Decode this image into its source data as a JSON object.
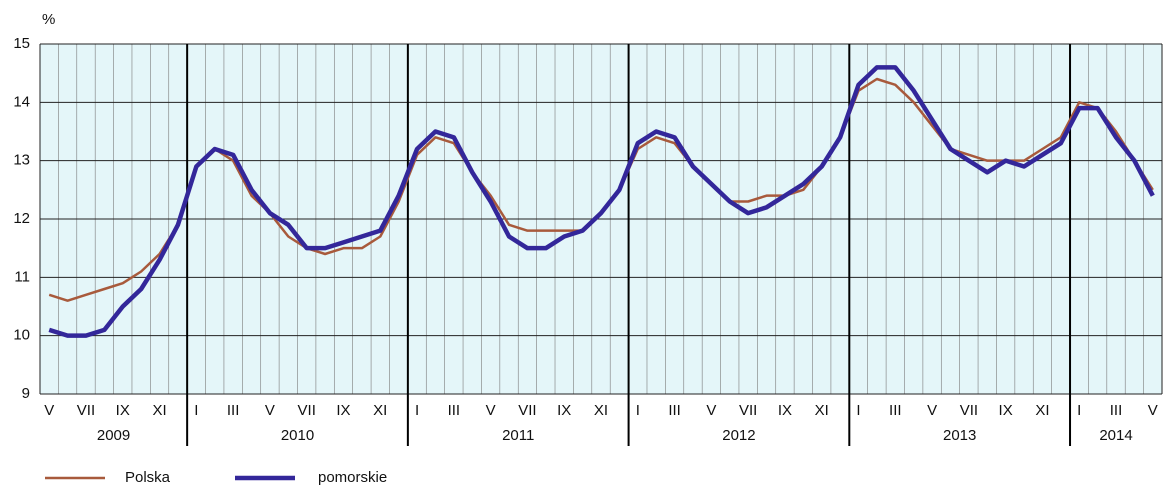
{
  "chart_data": {
    "type": "line",
    "y_label": "%",
    "categories": [
      "V",
      null,
      "VII",
      null,
      "IX",
      null,
      "XI",
      null,
      "I",
      null,
      "III",
      null,
      "V",
      null,
      "VII",
      null,
      "IX",
      null,
      "XI",
      null,
      "I",
      null,
      "III",
      null,
      "V",
      null,
      "VII",
      null,
      "IX",
      null,
      "XI",
      null,
      "I",
      null,
      "III",
      null,
      "V",
      null,
      "VII",
      null,
      "IX",
      null,
      "XI",
      null,
      "I",
      null,
      "III",
      null,
      "V",
      null,
      "VII",
      null,
      "IX",
      null,
      "XI",
      null,
      "I",
      null,
      "III",
      null,
      "V"
    ],
    "year_labels": [
      "2009",
      "2010",
      "2011",
      "2012",
      "2013",
      "2014"
    ],
    "series": [
      {
        "name": "Polska",
        "color": "#a85a3c",
        "width": 2.5,
        "values": [
          10.7,
          10.6,
          10.7,
          10.8,
          10.9,
          11.1,
          11.4,
          11.9,
          12.9,
          13.2,
          13.0,
          12.4,
          12.1,
          11.7,
          11.5,
          11.4,
          11.5,
          11.5,
          11.7,
          12.3,
          13.1,
          13.4,
          13.3,
          12.8,
          12.4,
          11.9,
          11.8,
          11.8,
          11.8,
          11.8,
          12.1,
          12.5,
          13.2,
          13.4,
          13.3,
          12.9,
          12.6,
          12.3,
          12.3,
          12.4,
          12.4,
          12.5,
          12.9,
          13.4,
          14.2,
          14.4,
          14.3,
          14.0,
          13.6,
          13.2,
          13.1,
          13.0,
          13.0,
          13.0,
          13.2,
          13.4,
          14.0,
          13.9,
          13.5,
          13.0,
          12.5
        ]
      },
      {
        "name": "pomorskie",
        "color": "#33279a",
        "width": 4.5,
        "values": [
          10.1,
          10.0,
          10.0,
          10.1,
          10.5,
          10.8,
          11.3,
          11.9,
          12.9,
          13.2,
          13.1,
          12.5,
          12.1,
          11.9,
          11.5,
          11.5,
          11.6,
          11.7,
          11.8,
          12.4,
          13.2,
          13.5,
          13.4,
          12.8,
          12.3,
          11.7,
          11.5,
          11.5,
          11.7,
          11.8,
          12.1,
          12.5,
          13.3,
          13.5,
          13.4,
          12.9,
          12.6,
          12.3,
          12.1,
          12.2,
          12.4,
          12.6,
          12.9,
          13.4,
          14.3,
          14.6,
          14.6,
          14.2,
          13.7,
          13.2,
          13.0,
          12.8,
          13.0,
          12.9,
          13.1,
          13.3,
          13.9,
          13.9,
          13.4,
          13.0,
          12.4
        ]
      }
    ],
    "ylim": [
      9,
      15
    ],
    "yticks": [
      9,
      10,
      11,
      12,
      13,
      14,
      15
    ],
    "grid": true
  }
}
